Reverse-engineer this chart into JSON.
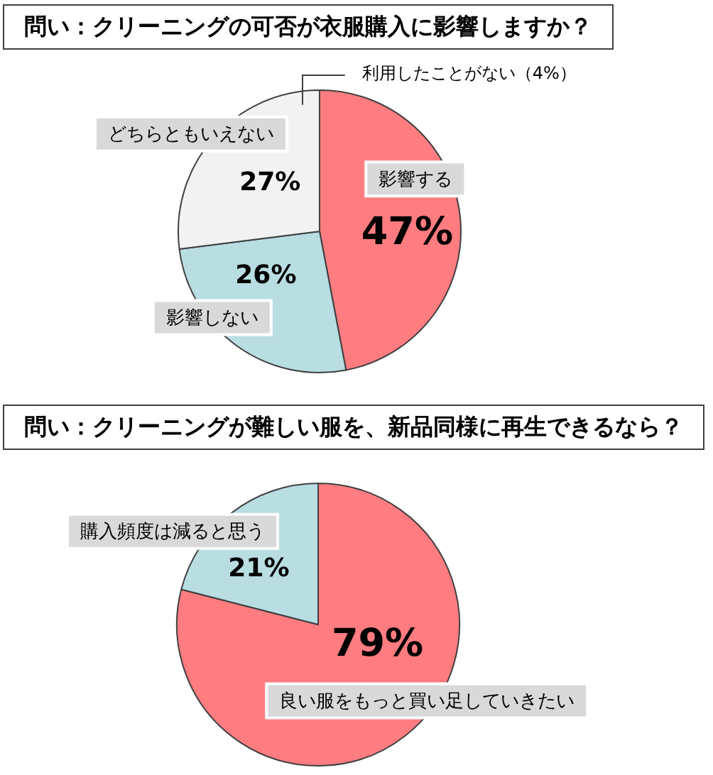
{
  "chart_data": [
    {
      "type": "pie",
      "title": "問い：クリーニングの可否が衣服購入に影響しますか？",
      "categories": [
        "影響する",
        "影響しない",
        "どちらともいえない"
      ],
      "values": [
        47,
        26,
        27
      ],
      "colors": [
        "#ff7c80",
        "#b8dee2",
        "#f2f2f2"
      ],
      "value_labels": [
        "47%",
        "26%",
        "27%"
      ],
      "annotations": [
        "利用したことがない（4%）"
      ]
    },
    {
      "type": "pie",
      "title": "問い：クリーニングが難しい服を、新品同様に再生できるなら？",
      "categories": [
        "良い服をもっと買い足していきたい",
        "購入頻度は減ると思う"
      ],
      "values": [
        79,
        21
      ],
      "colors": [
        "#ff7c80",
        "#b8dee2"
      ],
      "value_labels": [
        "79%",
        "21%"
      ]
    }
  ]
}
